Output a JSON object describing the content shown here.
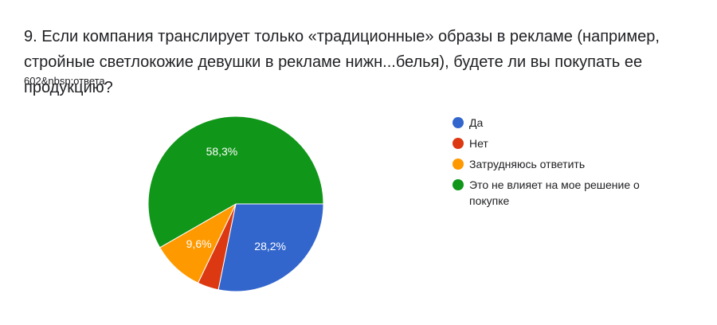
{
  "question": {
    "title": "9. Если компания транслирует только «традиционные» образы в рекламе (например, стройные светлокожие девушки в рекламе нижн...белья), будете ли вы покупать ее продукцию?",
    "response_count": "602&nbsp;ответа"
  },
  "chart_data": {
    "type": "pie",
    "title": "",
    "legend_position": "right",
    "start_angle_deg": 90,
    "direction": "clockwise",
    "slices": [
      {
        "label": "Да",
        "value": 28.2,
        "display": "28,2%",
        "color": "#3366cc",
        "show_label": true
      },
      {
        "label": "Нет",
        "value": 3.9,
        "display": "",
        "color": "#dc3912",
        "show_label": false
      },
      {
        "label": "Затрудняюсь ответить",
        "value": 9.6,
        "display": "9,6%",
        "color": "#ff9900",
        "show_label": true
      },
      {
        "label": "Это не влияет на мое решение о покупке",
        "value": 58.3,
        "display": "58,3%",
        "color": "#109618",
        "show_label": true
      }
    ]
  }
}
